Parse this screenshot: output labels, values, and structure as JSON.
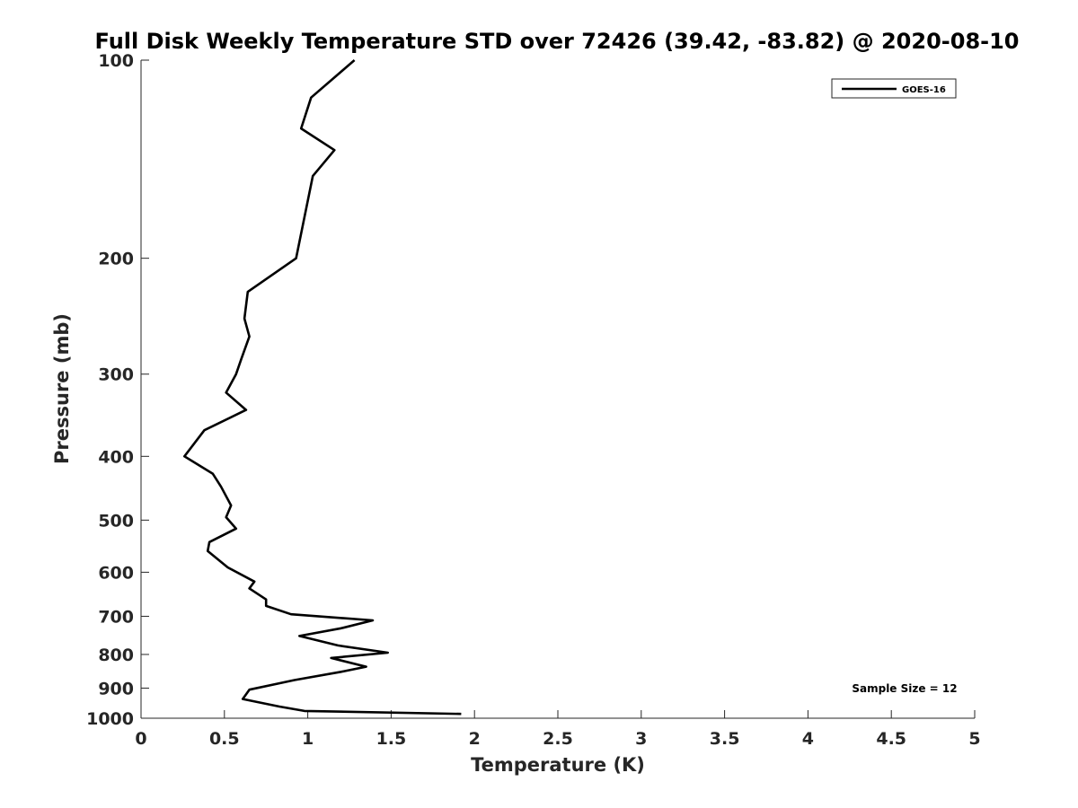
{
  "chart_data": {
    "type": "line",
    "title": "Full Disk Weekly Temperature STD over 72426 (39.42, -83.82) @ 2020-08-10",
    "xlabel": "Temperature (K)",
    "ylabel": "Pressure (mb)",
    "xlim": [
      0,
      5
    ],
    "ylim": [
      100,
      1000
    ],
    "y_scale": "log",
    "y_reversed": true,
    "x_ticks": [
      "0",
      "0.5",
      "1",
      "1.5",
      "2",
      "2.5",
      "3",
      "3.5",
      "4",
      "4.5",
      "5"
    ],
    "y_ticks": [
      "100",
      "200",
      "300",
      "400",
      "500",
      "600",
      "700",
      "800",
      "900",
      "1000"
    ],
    "grid": false,
    "legend_position": "top-right",
    "line_color": "#000000",
    "series": [
      {
        "name": "GOES-16",
        "x": [
          1.28,
          1.02,
          0.96,
          1.16,
          1.03,
          0.93,
          0.64,
          0.62,
          0.65,
          0.6,
          0.57,
          0.51,
          0.63,
          0.38,
          0.26,
          0.43,
          0.48,
          0.54,
          0.51,
          0.57,
          0.41,
          0.4,
          0.52,
          0.68,
          0.65,
          0.75,
          0.75,
          0.9,
          1.39,
          1.2,
          0.95,
          1.18,
          1.48,
          1.14,
          1.35,
          1.2,
          0.92,
          0.65,
          0.61,
          0.83,
          0.98,
          1.92
        ],
        "y": [
          100,
          114,
          127,
          137,
          150,
          200,
          225,
          247,
          263,
          285,
          300,
          320,
          340,
          365,
          400,
          425,
          445,
          475,
          495,
          515,
          540,
          557,
          590,
          620,
          635,
          660,
          675,
          695,
          710,
          730,
          750,
          775,
          795,
          810,
          835,
          850,
          875,
          905,
          935,
          960,
          975,
          985
        ]
      }
    ],
    "annotation": "Sample Size = 12"
  }
}
